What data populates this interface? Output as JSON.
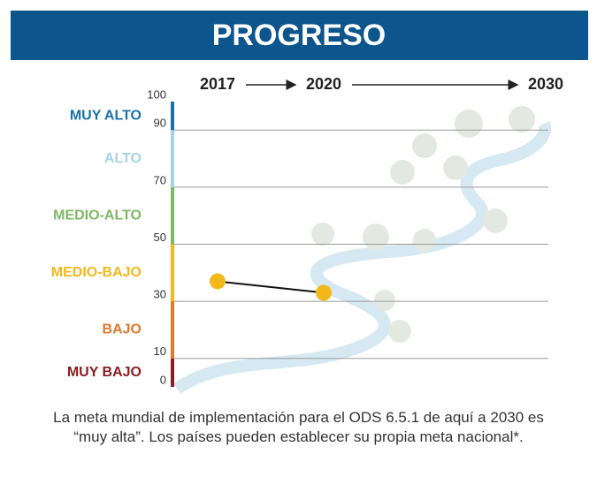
{
  "chart_data": {
    "type": "line",
    "title": "PROGRESO",
    "categories": [
      "2017",
      "2020",
      "2030"
    ],
    "values": [
      37,
      33,
      null
    ],
    "color": "#f3b81a",
    "ylim": [
      0,
      100
    ],
    "yticks": [
      0,
      10,
      30,
      50,
      70,
      90,
      100
    ],
    "grid": true,
    "bands": [
      {
        "label": "MUY BAJO",
        "range": [
          0,
          10
        ],
        "color": "#8c1c1f"
      },
      {
        "label": "BAJO",
        "range": [
          10,
          30
        ],
        "color": "#dc7a2d"
      },
      {
        "label": "MEDIO-BAJO",
        "range": [
          30,
          50
        ],
        "color": "#f3b81a"
      },
      {
        "label": "MEDIO-ALTO",
        "range": [
          50,
          70
        ],
        "color": "#7fb865"
      },
      {
        "label": "ALTO",
        "range": [
          70,
          90
        ],
        "color": "#a8d2e8"
      },
      {
        "label": "MUY ALTO",
        "range": [
          90,
          100
        ],
        "color": "#1b72ab"
      }
    ],
    "caption": "La meta mundial de implementación para el ODS 6.5.1 de aquí a 2030 es “muy alta”. Los países pueden establecer su propia meta nacional*."
  }
}
